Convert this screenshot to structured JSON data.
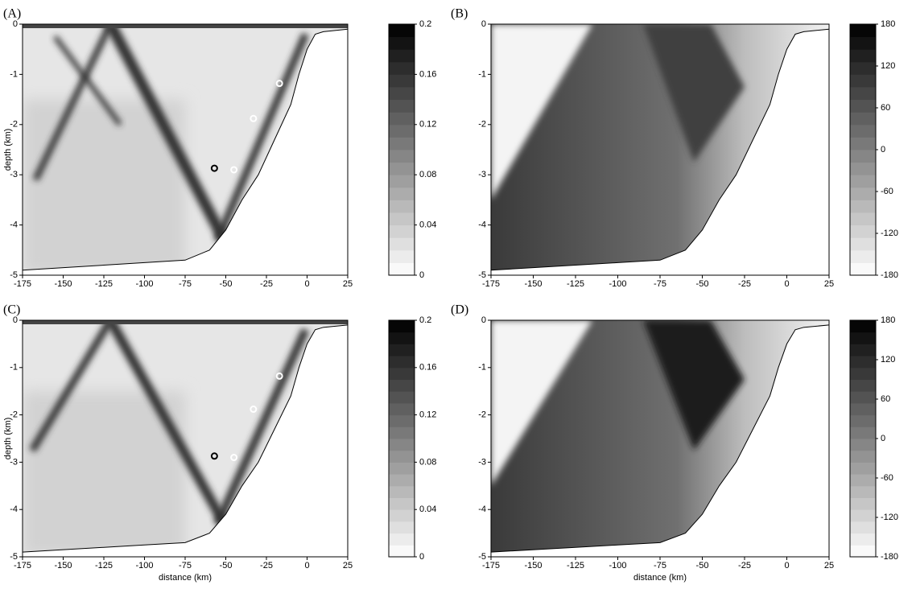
{
  "chart_data": [
    {
      "type": "contour",
      "label": "(A)",
      "ylabel": "depth (km)",
      "xlim": [
        -175,
        25
      ],
      "ylim": [
        -5,
        0
      ],
      "xticks": [
        -175,
        -150,
        -125,
        -100,
        -75,
        -50,
        -25,
        0,
        25
      ],
      "yticks": [
        -5,
        -4,
        -3,
        -2,
        -1,
        0
      ],
      "colorbar": {
        "lim": [
          0,
          0.2
        ],
        "ticks": [
          0,
          0.04,
          0.08,
          0.12,
          0.16,
          0.2
        ]
      },
      "bathymetry": {
        "x": [
          -175,
          -125,
          -100,
          -75,
          -60,
          -50,
          -40,
          -30,
          -20,
          -10,
          -5,
          0,
          5,
          10,
          25
        ],
        "y": [
          -4.9,
          -4.8,
          -4.75,
          -4.7,
          -4.5,
          -4.1,
          -3.5,
          -3.0,
          -2.3,
          -1.6,
          -1.0,
          -0.5,
          -0.2,
          -0.15,
          -0.1
        ]
      },
      "markers": {
        "x": [
          -57,
          -45,
          -33,
          -17
        ],
        "y": [
          -2.87,
          -2.9,
          -1.88,
          -1.18
        ],
        "colors": [
          "#000000",
          "#ffffff",
          "#ffffff",
          "#ffffff"
        ]
      }
    },
    {
      "type": "contour",
      "label": "(B)",
      "xlim": [
        -175,
        25
      ],
      "ylim": [
        -5,
        0
      ],
      "xticks": [
        -175,
        -150,
        -125,
        -100,
        -75,
        -50,
        -25,
        0,
        25
      ],
      "yticks": [
        -5,
        -4,
        -3,
        -2,
        -1,
        0
      ],
      "colorbar": {
        "lim": [
          -180,
          180
        ],
        "ticks": [
          -180,
          -120,
          -60,
          0,
          60,
          120,
          180
        ]
      },
      "bathymetry": {
        "x": [
          -175,
          -125,
          -100,
          -75,
          -60,
          -50,
          -40,
          -30,
          -20,
          -10,
          -5,
          0,
          5,
          10,
          25
        ],
        "y": [
          -4.9,
          -4.8,
          -4.75,
          -4.7,
          -4.5,
          -4.1,
          -3.5,
          -3.0,
          -2.3,
          -1.6,
          -1.0,
          -0.5,
          -0.2,
          -0.15,
          -0.1
        ]
      }
    },
    {
      "type": "contour",
      "label": "(C)",
      "ylabel": "depth (km)",
      "xlabel": "distance (km)",
      "xlim": [
        -175,
        25
      ],
      "ylim": [
        -5,
        0
      ],
      "xticks": [
        -175,
        -150,
        -125,
        -100,
        -75,
        -50,
        -25,
        0,
        25
      ],
      "yticks": [
        -5,
        -4,
        -3,
        -2,
        -1,
        0
      ],
      "colorbar": {
        "lim": [
          0,
          0.2
        ],
        "ticks": [
          0,
          0.04,
          0.08,
          0.12,
          0.16,
          0.2
        ]
      },
      "bathymetry": {
        "x": [
          -175,
          -125,
          -100,
          -75,
          -60,
          -50,
          -40,
          -30,
          -20,
          -10,
          -5,
          0,
          5,
          10,
          25
        ],
        "y": [
          -4.9,
          -4.8,
          -4.75,
          -4.7,
          -4.5,
          -4.1,
          -3.5,
          -3.0,
          -2.3,
          -1.6,
          -1.0,
          -0.5,
          -0.2,
          -0.15,
          -0.1
        ]
      },
      "markers": {
        "x": [
          -57,
          -45,
          -33,
          -17
        ],
        "y": [
          -2.87,
          -2.9,
          -1.88,
          -1.18
        ],
        "colors": [
          "#000000",
          "#ffffff",
          "#ffffff",
          "#ffffff"
        ]
      }
    },
    {
      "type": "contour",
      "label": "(D)",
      "xlabel": "distance (km)",
      "xlim": [
        -175,
        25
      ],
      "ylim": [
        -5,
        0
      ],
      "xticks": [
        -175,
        -150,
        -125,
        -100,
        -75,
        -50,
        -25,
        0,
        25
      ],
      "yticks": [
        -5,
        -4,
        -3,
        -2,
        -1,
        0
      ],
      "colorbar": {
        "lim": [
          -180,
          180
        ],
        "ticks": [
          -180,
          -120,
          -60,
          0,
          60,
          120,
          180
        ]
      },
      "bathymetry": {
        "x": [
          -175,
          -125,
          -100,
          -75,
          -60,
          -50,
          -40,
          -30,
          -20,
          -10,
          -5,
          0,
          5,
          10,
          25
        ],
        "y": [
          -4.9,
          -4.8,
          -4.75,
          -4.7,
          -4.5,
          -4.1,
          -3.5,
          -3.0,
          -2.3,
          -1.6,
          -1.0,
          -0.5,
          -0.2,
          -0.15,
          -0.1
        ]
      }
    }
  ]
}
